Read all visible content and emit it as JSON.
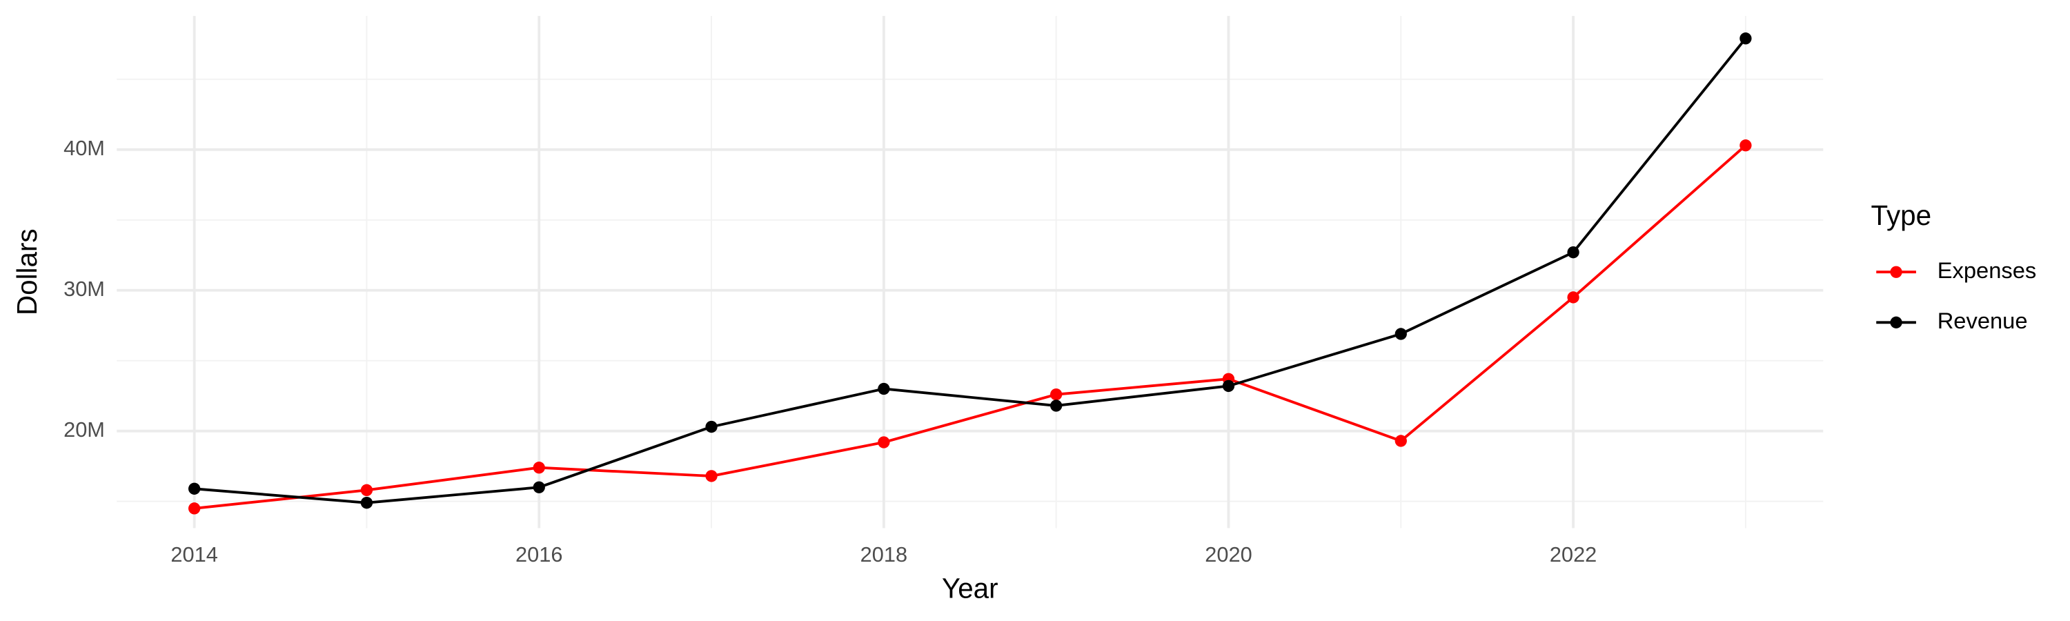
{
  "chart_data": {
    "type": "line",
    "x_label": "Year",
    "y_label": "Dollars",
    "legend_title": "Type",
    "x": [
      2014,
      2015,
      2016,
      2017,
      2018,
      2019,
      2020,
      2021,
      2022,
      2023
    ],
    "series": [
      {
        "name": "Expenses",
        "color": "#ff0000",
        "values": [
          14500000,
          15800000,
          17400000,
          16800000,
          19200000,
          22600000,
          23700000,
          19300000,
          29500000,
          40300000
        ]
      },
      {
        "name": "Revenue",
        "color": "#000000",
        "values": [
          15900000,
          14900000,
          16000000,
          20300000,
          23000000,
          21800000,
          23200000,
          26900000,
          32700000,
          47900000
        ]
      }
    ],
    "xlim": [
      2013.55,
      2023.45
    ],
    "xticks": [
      2014,
      2016,
      2018,
      2020,
      2022
    ],
    "ylim": [
      13100000,
      49500000
    ],
    "yticks": [
      {
        "value": 20000000,
        "label": "20M"
      },
      {
        "value": 30000000,
        "label": "30M"
      },
      {
        "value": 40000000,
        "label": "40M"
      }
    ],
    "grid": true,
    "legend": "right"
  }
}
